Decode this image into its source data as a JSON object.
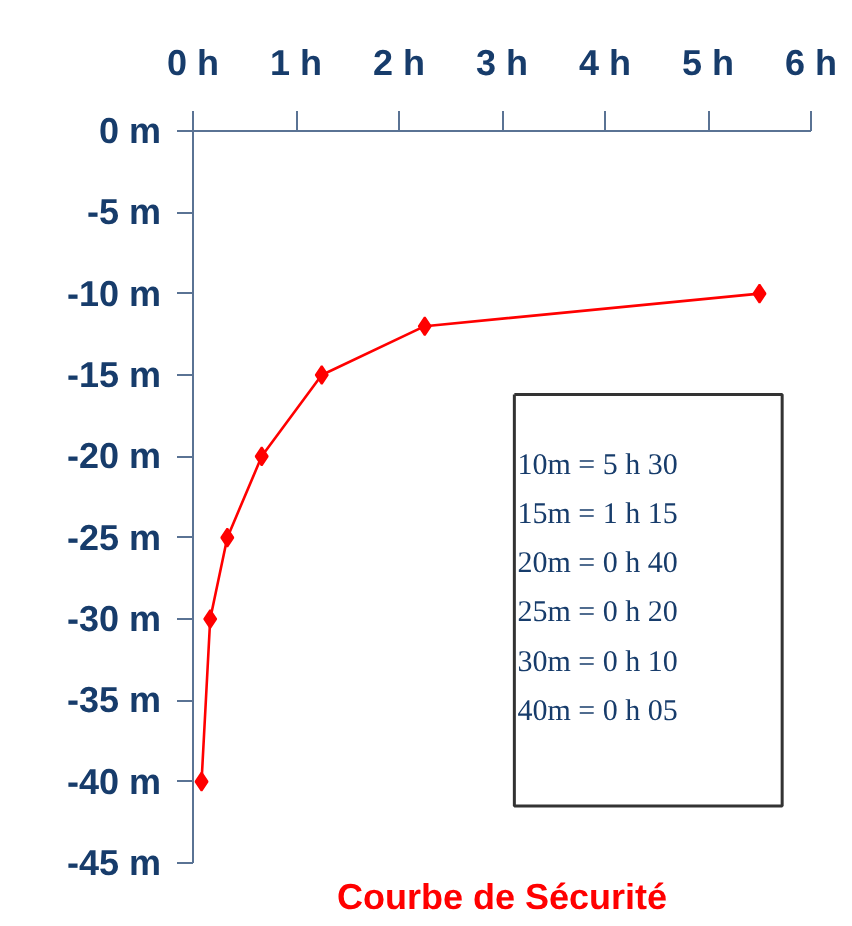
{
  "chart_data": {
    "type": "line",
    "title": "Courbe de Sécurité",
    "x": [
      0.083,
      0.167,
      0.333,
      0.667,
      1.25,
      2.25,
      5.5
    ],
    "series": [
      {
        "color": "#ff0000",
        "values": [
          -40,
          -30,
          -25,
          -20,
          -15,
          -12,
          -10
        ]
      }
    ],
    "marker": "diamond",
    "grid": false,
    "xlim": [
      0,
      6
    ],
    "ylim": [
      -45,
      0
    ],
    "xticks": [
      {
        "value": 0,
        "label": "0 h"
      },
      {
        "value": 1,
        "label": "1 h"
      },
      {
        "value": 2,
        "label": "2 h"
      },
      {
        "value": 3,
        "label": "3 h"
      },
      {
        "value": 4,
        "label": "4 h"
      },
      {
        "value": 5,
        "label": "5 h"
      },
      {
        "value": 6,
        "label": "6 h"
      }
    ],
    "yticks": [
      {
        "value": 0,
        "label": "0 m"
      },
      {
        "value": -5,
        "label": "-5 m"
      },
      {
        "value": -10,
        "label": "-10 m"
      },
      {
        "value": -15,
        "label": "-15 m"
      },
      {
        "value": -20,
        "label": "-20 m"
      },
      {
        "value": -25,
        "label": "-25 m"
      },
      {
        "value": -30,
        "label": "-30 m"
      },
      {
        "value": -35,
        "label": "-35 m"
      },
      {
        "value": -40,
        "label": "-40 m"
      },
      {
        "value": -45,
        "label": "-45 m"
      }
    ],
    "annotations": [
      "10m  = 5 h  30",
      "15m  =  1 h  15",
      "20m  = 0 h  40",
      "25m  = 0 h  20",
      "30m  = 0 h  10",
      "40m  = 0 h  05"
    ]
  }
}
